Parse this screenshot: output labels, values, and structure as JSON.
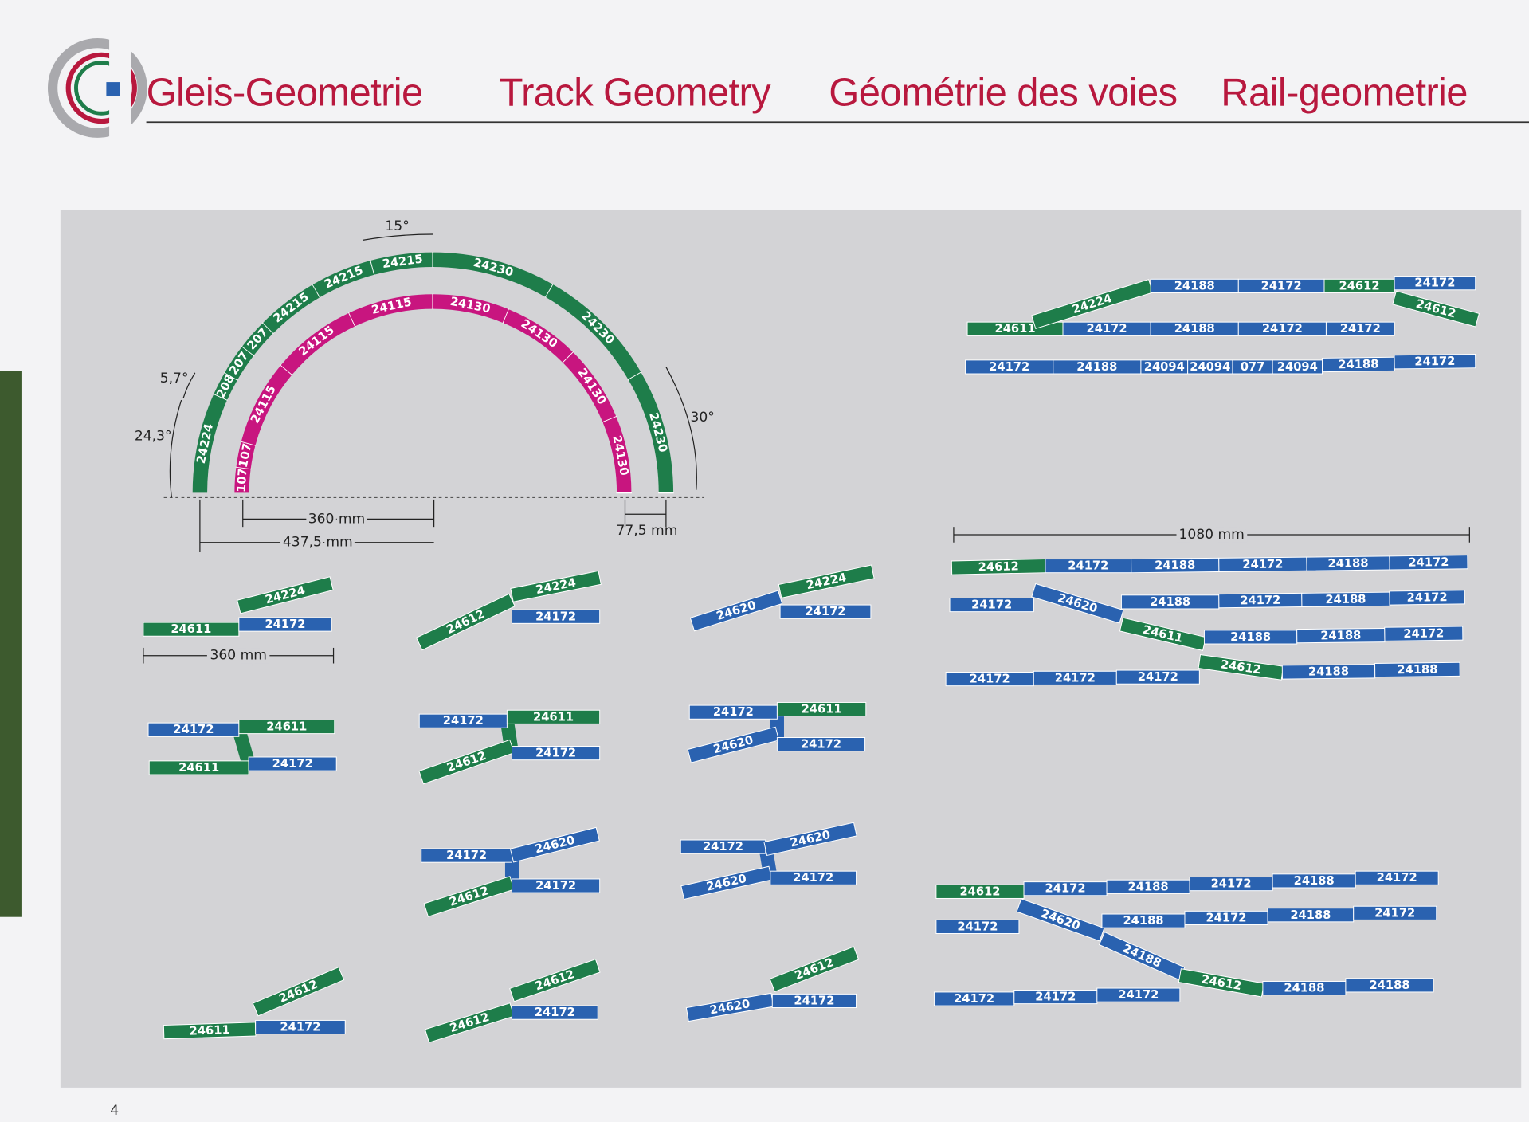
{
  "header": {
    "titles": [
      "Gleis-Geometrie",
      "Track Geometry",
      "Géométrie des voies",
      "Rail-geometrie"
    ]
  },
  "curve_diagram": {
    "outer_ring": [
      "24224",
      "208",
      "207",
      "207",
      "24215",
      "24215",
      "24215",
      "24230",
      "24230",
      "24230"
    ],
    "inner_ring": [
      "107",
      "107",
      "24115",
      "24115",
      "24115",
      "24130",
      "24130",
      "24130",
      "24130"
    ],
    "angle_labels": [
      "15°",
      "5,7°",
      "24,3°",
      "30°"
    ],
    "dimensions": [
      "360 mm",
      "437,5 mm",
      "77,5 mm"
    ]
  },
  "track_layouts": [
    {
      "pieces": [
        "24611",
        "24172",
        "24188",
        "24172",
        "24172",
        "24612",
        "24224",
        "24188",
        "24172",
        "24612",
        "24172",
        "24172",
        "24188",
        "24094",
        "24094",
        "077",
        "24094",
        "24188",
        "24172"
      ]
    },
    {
      "dimension": "1080 mm",
      "pieces": [
        "24612",
        "24172",
        "24188",
        "24172",
        "24188",
        "24172",
        "24172",
        "24620",
        "24188",
        "24172",
        "24188",
        "24172",
        "24611",
        "24188",
        "24188",
        "24172",
        "24172",
        "24172",
        "24172",
        "24612",
        "24188",
        "24188"
      ]
    },
    {
      "pieces": [
        "24612",
        "24172",
        "24188",
        "24172",
        "24188",
        "24172",
        "24172",
        "24620",
        "24188",
        "24172",
        "24188",
        "24172",
        "24188",
        "24172",
        "24172",
        "24172",
        "24612",
        "24188",
        "24188"
      ]
    },
    {
      "dimension": "360 mm",
      "pieces": [
        "24611",
        "24224",
        "24172"
      ]
    },
    {
      "pieces": [
        "24612",
        "24224",
        "24172"
      ]
    },
    {
      "pieces": [
        "24620",
        "24224",
        "24172"
      ]
    },
    {
      "pieces": [
        "24172",
        "24611",
        "24611",
        "24172"
      ]
    },
    {
      "pieces": [
        "24172",
        "24611",
        "24612",
        "24172"
      ]
    },
    {
      "pieces": [
        "24172",
        "24611",
        "24620",
        "24172"
      ]
    },
    {
      "pieces": [
        "24172",
        "24620",
        "24612",
        "24172"
      ]
    },
    {
      "pieces": [
        "24172",
        "24620",
        "24620",
        "24172"
      ]
    },
    {
      "pieces": [
        "24611",
        "24612",
        "24172"
      ]
    },
    {
      "pieces": [
        "24612",
        "24612",
        "24172"
      ]
    },
    {
      "pieces": [
        "24620",
        "24612",
        "24172"
      ]
    }
  ],
  "page_number": "4"
}
